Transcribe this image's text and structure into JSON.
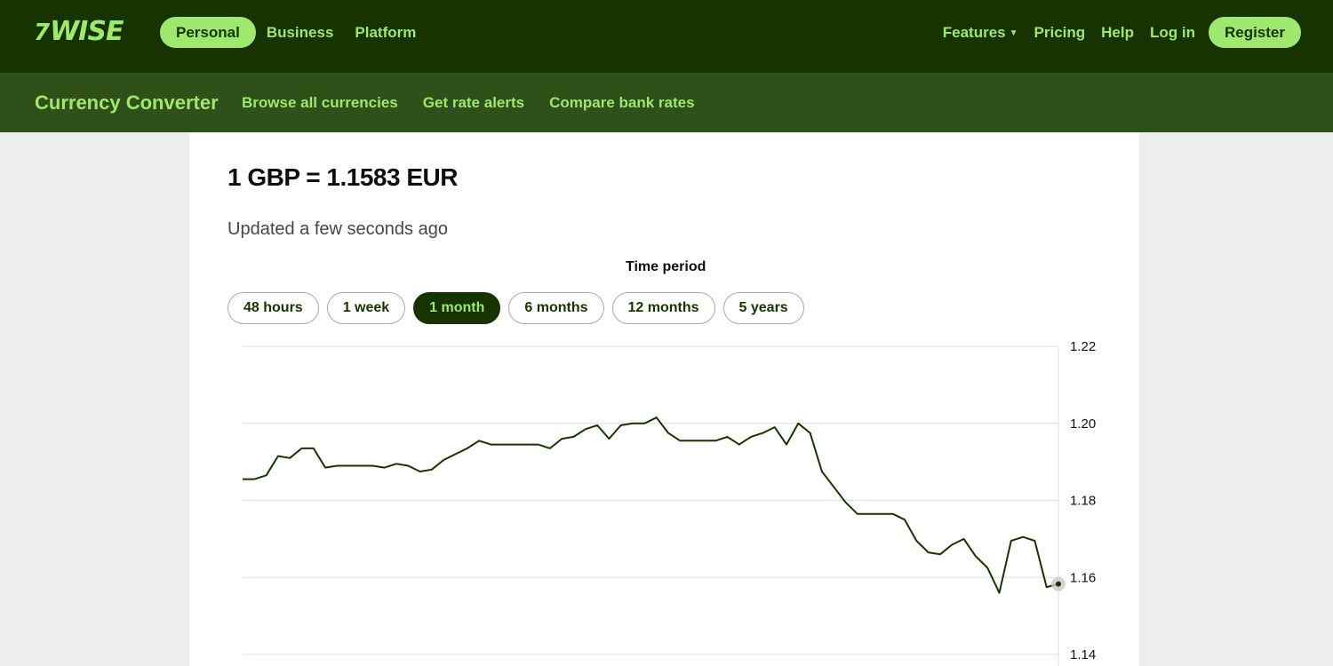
{
  "header": {
    "logo_text": "WISE",
    "logo_flag": "7",
    "nav_left": [
      "Personal",
      "Business",
      "Platform"
    ],
    "nav_right": {
      "features": "Features",
      "pricing": "Pricing",
      "help": "Help",
      "login": "Log in",
      "register": "Register"
    },
    "colors": {
      "primary": "#163300",
      "accent": "#9fe870",
      "subnav": "#2f5019"
    }
  },
  "subnav": {
    "title": "Currency Converter",
    "links": [
      "Browse all currencies",
      "Get rate alerts",
      "Compare bank rates"
    ]
  },
  "main": {
    "rate": "1 GBP = 1.1583 EUR",
    "updated": "Updated a few seconds ago",
    "period_label": "Time period",
    "periods": [
      "48 hours",
      "1 week",
      "1 month",
      "6 months",
      "12 months",
      "5 years"
    ],
    "active_period": "1 month"
  },
  "chart_data": {
    "type": "line",
    "title": "",
    "xlabel": "",
    "ylabel": "",
    "ylim": [
      1.14,
      1.22
    ],
    "yticks": [
      "1.22",
      "1.20",
      "1.18",
      "1.16",
      "1.14"
    ],
    "grid": true,
    "series": [
      {
        "color": "#163300",
        "values": [
          1.1855,
          1.1855,
          1.1865,
          1.1915,
          1.191,
          1.1935,
          1.1935,
          1.1885,
          1.189,
          1.189,
          1.189,
          1.189,
          1.1885,
          1.1895,
          1.189,
          1.1875,
          1.188,
          1.1905,
          1.192,
          1.1935,
          1.1955,
          1.1945,
          1.1945,
          1.1945,
          1.1945,
          1.1945,
          1.1935,
          1.196,
          1.1965,
          1.1985,
          1.1995,
          1.196,
          1.1995,
          1.2,
          1.2,
          1.2015,
          1.1975,
          1.1955,
          1.1955,
          1.1955,
          1.1955,
          1.1965,
          1.1945,
          1.1965,
          1.1975,
          1.199,
          1.1945,
          1.2,
          1.1975,
          1.1875,
          1.1835,
          1.1795,
          1.1765,
          1.1765,
          1.1765,
          1.1765,
          1.175,
          1.1695,
          1.1665,
          1.166,
          1.1685,
          1.17,
          1.1655,
          1.1625,
          1.156,
          1.1695,
          1.1705,
          1.1695,
          1.1575,
          1.1583
        ]
      }
    ]
  }
}
